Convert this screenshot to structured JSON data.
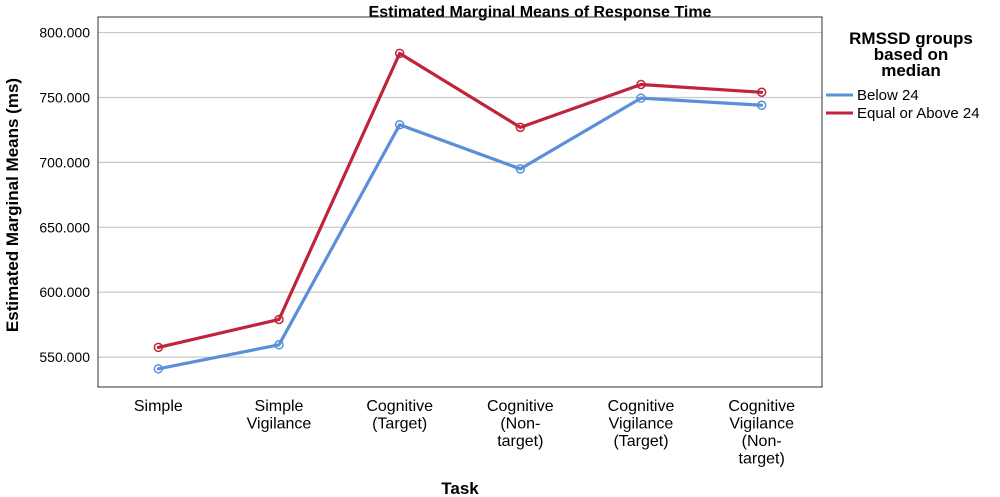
{
  "chart_data": {
    "type": "line",
    "title": "Estimated Marginal Means of Response Time",
    "xlabel": "Task",
    "ylabel": "Estimated Marginal Means (ms)",
    "categories": [
      [
        "Simple"
      ],
      [
        "Simple",
        "Vigilance"
      ],
      [
        "Cognitive",
        "(Target)"
      ],
      [
        "Cognitive",
        "(Non-",
        "target)"
      ],
      [
        "Cognitive",
        "Vigilance",
        "(Target)"
      ],
      [
        "Cognitive",
        "Vigilance",
        "(Non-",
        "target)"
      ]
    ],
    "yticks": [
      "550.000",
      "600.000",
      "650.000",
      "700.000",
      "750.000",
      "800.000"
    ],
    "ytick_values": [
      550,
      600,
      650,
      700,
      750,
      800
    ],
    "ylim": [
      527,
      812
    ],
    "grid": true,
    "legend": {
      "title": [
        "RMSSD groups",
        "based on",
        "median"
      ],
      "placement": "right"
    },
    "series": [
      {
        "name": "Below 24",
        "color": "#5b8fd9",
        "values": [
          541,
          559.5,
          729,
          695,
          749.5,
          744
        ]
      },
      {
        "name": "Equal or Above 24",
        "color": "#c0243a",
        "values": [
          557.5,
          579,
          784,
          727,
          760,
          754
        ]
      }
    ]
  }
}
